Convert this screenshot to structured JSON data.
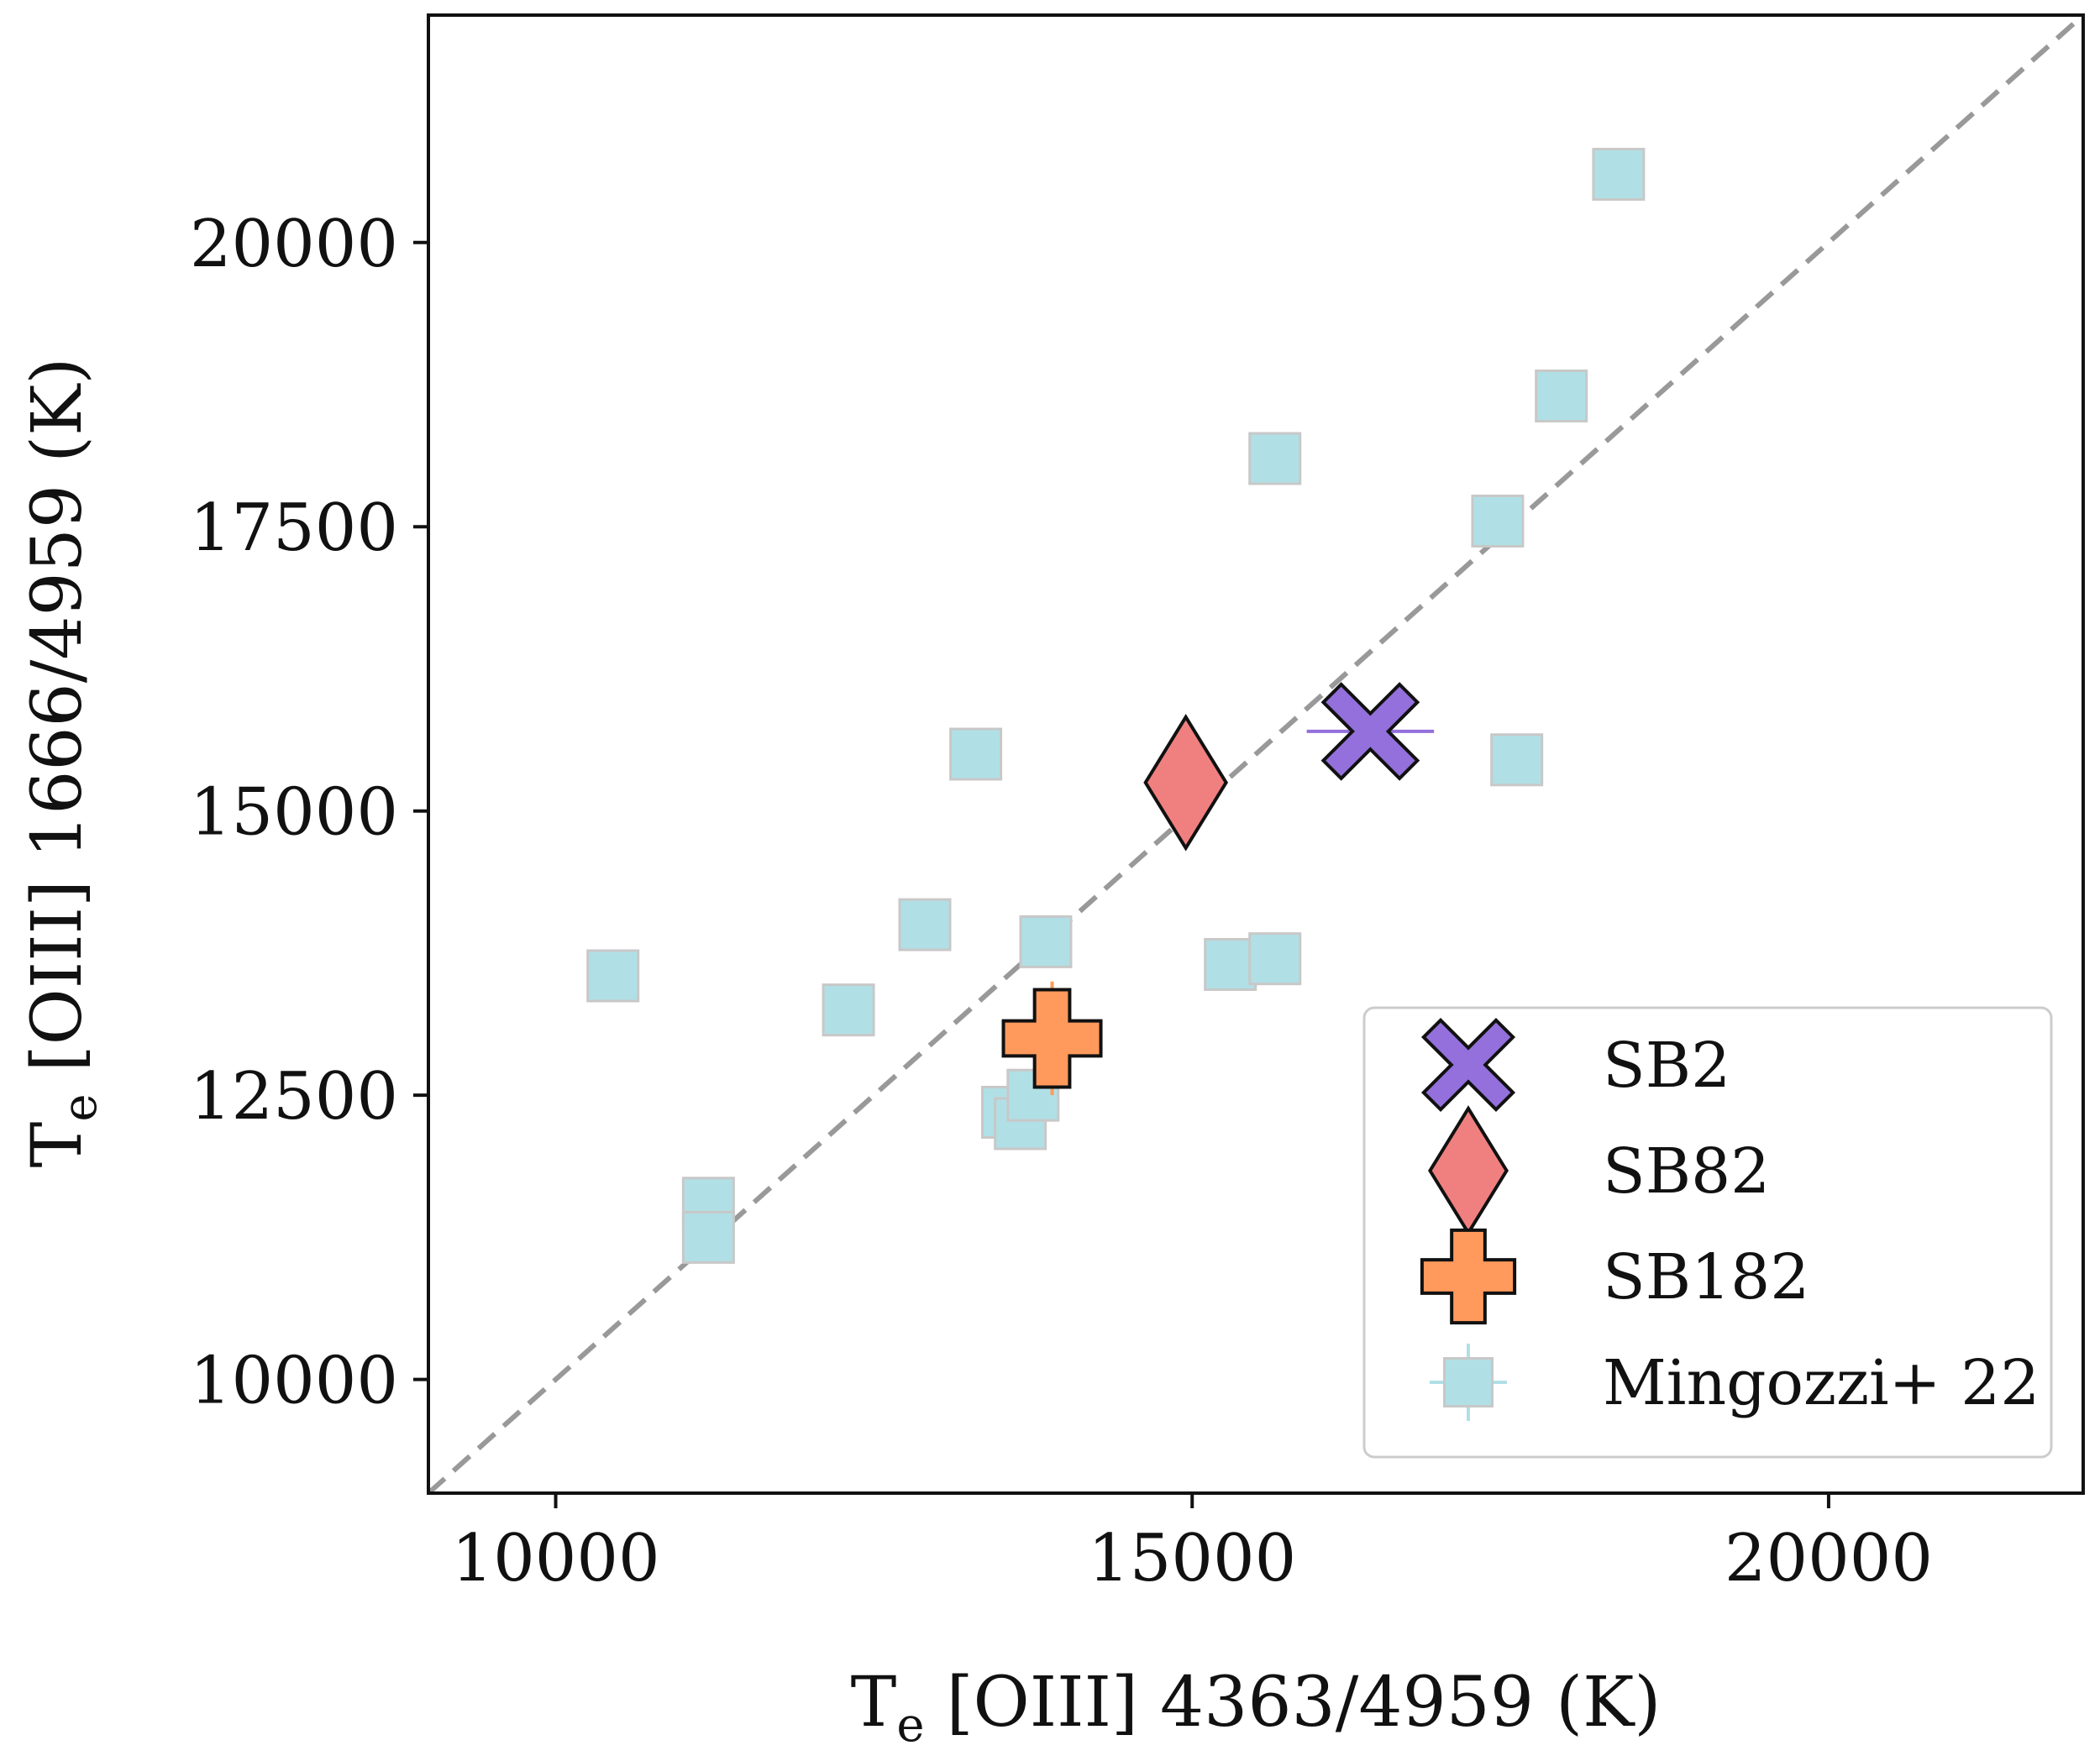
{
  "chart_data": {
    "type": "scatter",
    "title": "",
    "xlabel": {
      "main": "T",
      "sub": "e",
      "rest": " [OIII] 4363/4959 (K)"
    },
    "ylabel": {
      "main": "T",
      "sub": "e",
      "rest": " [OIII] 1666/4959 (K)"
    },
    "xlim": [
      9000,
      22000
    ],
    "ylim": [
      9000,
      22000
    ],
    "xticks": [
      10000,
      15000,
      20000
    ],
    "yticks": [
      10000,
      12500,
      15000,
      17500,
      20000
    ],
    "xtick_labels": [
      "10000",
      "15000",
      "20000"
    ],
    "ytick_labels": [
      "10000",
      "12500",
      "15000",
      "17500",
      "20000"
    ],
    "one_to_one_line": {
      "color": "#999999",
      "style": "dashed"
    },
    "legend_position": "lower-right",
    "grid": false,
    "series": [
      {
        "name": "SB2",
        "marker": "X",
        "color": "#9370db",
        "points": [
          {
            "x": 16400,
            "y": 15700,
            "xerr": 500,
            "yerr": 50
          }
        ]
      },
      {
        "name": "SB82",
        "marker": "diamond",
        "color": "#f08080",
        "points": [
          {
            "x": 14950,
            "y": 15250,
            "xerr": 60,
            "yerr": 60
          }
        ]
      },
      {
        "name": "SB182",
        "marker": "plus",
        "color": "#ff9a5c",
        "points": [
          {
            "x": 13900,
            "y": 13000,
            "xerr": 60,
            "yerr": 500
          }
        ]
      },
      {
        "name": "Mingozzi+ 22",
        "marker": "square",
        "color": "#b0e0e6",
        "points": [
          {
            "x": 10450,
            "y": 13550
          },
          {
            "x": 11200,
            "y": 11550
          },
          {
            "x": 11200,
            "y": 11250
          },
          {
            "x": 12300,
            "y": 13250
          },
          {
            "x": 12900,
            "y": 14000
          },
          {
            "x": 13300,
            "y": 15500
          },
          {
            "x": 13850,
            "y": 13850
          },
          {
            "x": 13550,
            "y": 12350
          },
          {
            "x": 13650,
            "y": 12250
          },
          {
            "x": 13750,
            "y": 12500
          },
          {
            "x": 15300,
            "y": 13650
          },
          {
            "x": 15650,
            "y": 13700
          },
          {
            "x": 15650,
            "y": 18100
          },
          {
            "x": 17400,
            "y": 17550
          },
          {
            "x": 17550,
            "y": 15450
          },
          {
            "x": 17900,
            "y": 18650
          },
          {
            "x": 18350,
            "y": 20600
          }
        ]
      }
    ]
  }
}
